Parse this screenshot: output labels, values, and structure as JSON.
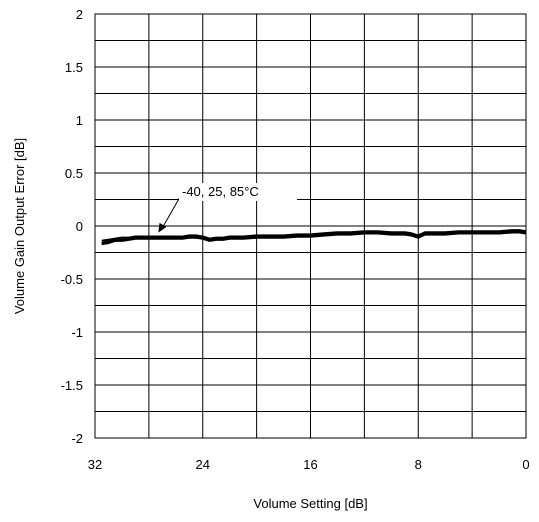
{
  "chart_data": {
    "type": "line",
    "title": "",
    "xlabel": "Volume Setting [dB]",
    "ylabel": "Volume Gain Output Error [dB]",
    "xlim": [
      32,
      0
    ],
    "ylim": [
      -2,
      2
    ],
    "x_reversed": true,
    "grid": true,
    "x_ticks": [
      32,
      24,
      16,
      8,
      0
    ],
    "x_tick_labels": [
      "32",
      "24",
      "16",
      "8",
      "0"
    ],
    "y_ticks": [
      2,
      1.5,
      1,
      0.5,
      0,
      -0.5,
      -1,
      -1.5,
      -2
    ],
    "y_tick_labels": [
      "2",
      "1.5",
      "1",
      "0.5",
      "0",
      "-0.5",
      "-1",
      "-1.5",
      "-2"
    ],
    "annotation": {
      "text": "-40, 25, 85°C",
      "x": 27.3,
      "y": -0.1
    },
    "series": [
      {
        "x": [
          31.5,
          31,
          30.5,
          30,
          29.5,
          29,
          28.5,
          28,
          27.5,
          27,
          26.5,
          26,
          25.5,
          25,
          24.5,
          24,
          23.5,
          23,
          22.5,
          22,
          21,
          20,
          19,
          18,
          17,
          16,
          15,
          14,
          13,
          12,
          11,
          10,
          9,
          8.5,
          8,
          7.5,
          7,
          6,
          5,
          4,
          3,
          2,
          1,
          0.5,
          0
        ],
        "values": [
          -0.16,
          -0.15,
          -0.13,
          -0.13,
          -0.12,
          -0.11,
          -0.11,
          -0.11,
          -0.11,
          -0.11,
          -0.11,
          -0.11,
          -0.11,
          -0.1,
          -0.1,
          -0.11,
          -0.13,
          -0.12,
          -0.12,
          -0.11,
          -0.11,
          -0.1,
          -0.1,
          -0.1,
          -0.09,
          -0.09,
          -0.08,
          -0.07,
          -0.07,
          -0.06,
          -0.06,
          -0.07,
          -0.07,
          -0.08,
          -0.1,
          -0.07,
          -0.07,
          -0.07,
          -0.06,
          -0.06,
          -0.06,
          -0.06,
          -0.05,
          -0.05,
          -0.06
        ]
      },
      {
        "x": [
          31.5,
          31,
          30.5,
          30,
          29.5,
          29,
          28.5,
          28,
          27.5,
          27,
          26.5,
          26,
          25.5,
          25,
          24.5,
          24,
          23.5,
          23,
          22.5,
          22,
          21,
          20,
          19,
          18,
          17,
          16,
          15,
          14,
          13,
          12,
          11,
          10,
          9,
          8.5,
          8,
          7.5,
          7,
          6,
          5,
          4,
          3,
          2,
          1,
          0.5,
          0
        ],
        "values": [
          -0.14,
          -0.13,
          -0.12,
          -0.11,
          -0.11,
          -0.1,
          -0.1,
          -0.1,
          -0.1,
          -0.1,
          -0.1,
          -0.1,
          -0.1,
          -0.09,
          -0.09,
          -0.1,
          -0.12,
          -0.11,
          -0.11,
          -0.1,
          -0.1,
          -0.09,
          -0.09,
          -0.09,
          -0.08,
          -0.08,
          -0.07,
          -0.06,
          -0.06,
          -0.05,
          -0.05,
          -0.06,
          -0.06,
          -0.07,
          -0.09,
          -0.06,
          -0.06,
          -0.06,
          -0.05,
          -0.05,
          -0.05,
          -0.05,
          -0.04,
          -0.04,
          -0.05
        ]
      },
      {
        "x": [
          31.5,
          31,
          30.5,
          30,
          29.5,
          29,
          28.5,
          28,
          27.5,
          27,
          26.5,
          26,
          25.5,
          25,
          24.5,
          24,
          23.5,
          23,
          22.5,
          22,
          21,
          20,
          19,
          18,
          17,
          16,
          15,
          14,
          13,
          12,
          11,
          10,
          9,
          8.5,
          8,
          7.5,
          7,
          6,
          5,
          4,
          3,
          2,
          1,
          0.5,
          0
        ],
        "values": [
          -0.17,
          -0.16,
          -0.14,
          -0.14,
          -0.13,
          -0.12,
          -0.12,
          -0.12,
          -0.12,
          -0.12,
          -0.12,
          -0.12,
          -0.12,
          -0.11,
          -0.11,
          -0.12,
          -0.14,
          -0.13,
          -0.13,
          -0.12,
          -0.12,
          -0.11,
          -0.11,
          -0.11,
          -0.1,
          -0.1,
          -0.09,
          -0.08,
          -0.08,
          -0.07,
          -0.07,
          -0.08,
          -0.08,
          -0.09,
          -0.11,
          -0.08,
          -0.08,
          -0.08,
          -0.07,
          -0.07,
          -0.07,
          -0.07,
          -0.06,
          -0.06,
          -0.07
        ]
      }
    ]
  }
}
